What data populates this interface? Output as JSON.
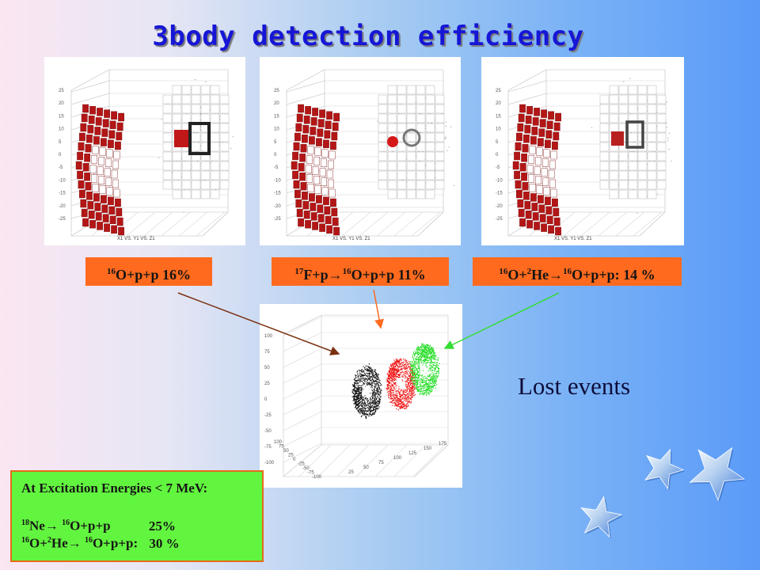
{
  "slide": {
    "title": "3body detection efficiency",
    "lost_events": "Lost events"
  },
  "panels": [
    {
      "axis_caption": "X1 VS. Y1 VS. Z1",
      "z_ticks": [
        "25",
        "20",
        "15",
        "10",
        "5",
        "0",
        "-5",
        "-10",
        "-15",
        "-20",
        "-25"
      ]
    },
    {
      "axis_caption": "X1 VS. Y1 VS. Z1",
      "z_ticks": [
        "25",
        "20",
        "15",
        "10",
        "5",
        "0",
        "-5",
        "-10",
        "-15",
        "-20",
        "-25"
      ]
    },
    {
      "axis_caption": "X1 VS. Y1 VS. Z1",
      "z_ticks": [
        "25",
        "20",
        "15",
        "10",
        "5",
        "0",
        "-5",
        "-10",
        "-15",
        "-20",
        "-25"
      ]
    }
  ],
  "bottom_panel": {
    "z_ticks": [
      "100",
      "75",
      "50",
      "25",
      "0",
      "-25",
      "-50",
      "-75",
      "-100"
    ],
    "y_ticks": [
      "100",
      "75",
      "50",
      "25",
      "0",
      "-25",
      "-50",
      "-75",
      "-100"
    ],
    "x_ticks": [
      "25",
      "50",
      "75",
      "100",
      "125",
      "150",
      "175"
    ]
  },
  "labels": [
    {
      "a_mass": "16",
      "a_text": "O+p+p 16%"
    },
    {
      "a_mass": "17",
      "a_text": "F+p",
      "arrow": "→",
      "b_mass": "16",
      "b_text": "O+p+p 11%"
    },
    {
      "a_mass": "16",
      "a_text": "O+",
      "c_mass": "2",
      "c_text": "He",
      "arrow": "→",
      "b_mass": "16",
      "b_text": "O+p+p: 14 %"
    }
  ],
  "info_box": {
    "heading": "At Excitation Energies < 7 MeV:",
    "row1": {
      "a_mass": "18",
      "a_text": "Ne",
      "arrow": "→",
      "b_mass": "16",
      "b_text": "O+p+p",
      "value": "25%"
    },
    "row2": {
      "a_mass": "16",
      "a_text": "O+",
      "c_mass": "2",
      "c_text": "He",
      "arrow": "→",
      "b_mass": "16",
      "b_text": "O+p+p:",
      "value": "30 %"
    }
  },
  "colors": {
    "title": "#1616d6",
    "label_bg": "#ff6a1e",
    "info_bg": "#62f53f",
    "series": [
      "#111111",
      "#ee1111",
      "#22dd22"
    ],
    "arrows": [
      "#7a3010",
      "#ff6a1e",
      "#33dd33"
    ]
  },
  "icons": [
    "star-icon",
    "star-icon",
    "star-icon"
  ]
}
